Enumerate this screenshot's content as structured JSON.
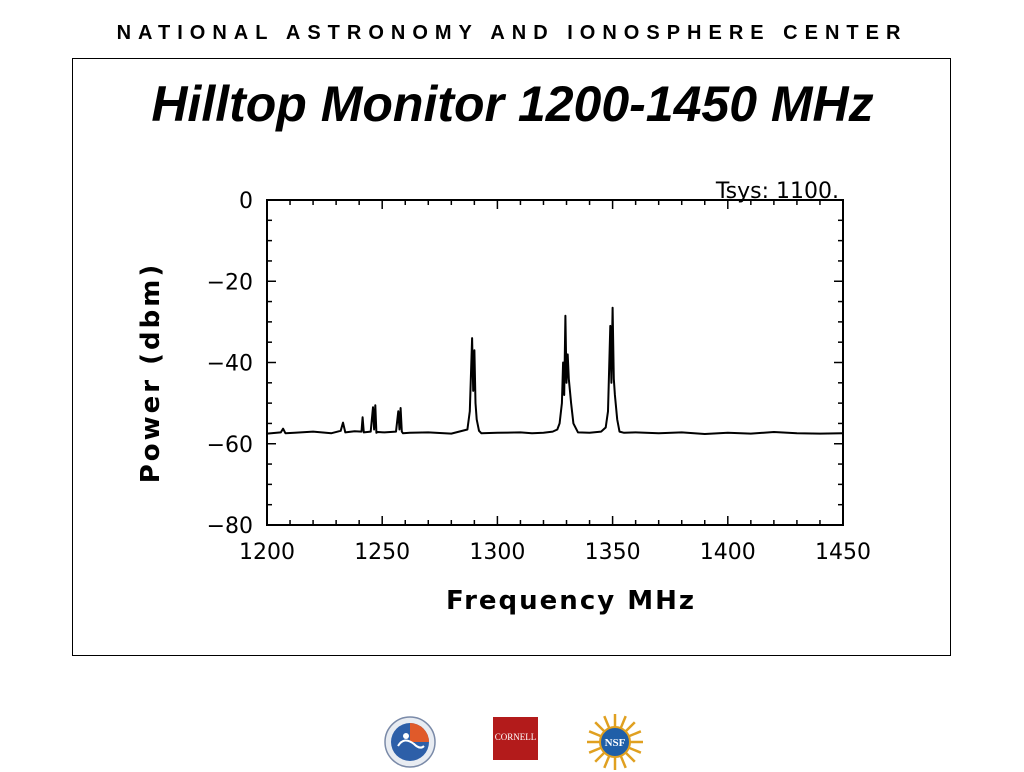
{
  "header": {
    "organization": "NATIONAL ASTRONOMY AND IONOSPHERE CENTER"
  },
  "slide": {
    "title": "Hilltop Monitor 1200-1450 MHz"
  },
  "logos": {
    "naic": {
      "icon": "naic-seal-icon"
    },
    "cornell": {
      "icon": "cornell-logo-icon",
      "text": "CORNELL",
      "color": "#b31b1b"
    },
    "nsf": {
      "icon": "nsf-logo-icon",
      "text": "NSF"
    }
  },
  "chart_data": {
    "type": "line",
    "annotation": "Tsys: 1100.",
    "xlabel": "Frequency  MHz",
    "ylabel": "Power  (dbm)",
    "xlim": [
      1200,
      1450
    ],
    "ylim": [
      -80,
      0
    ],
    "x_ticks": [
      1200,
      1250,
      1300,
      1350,
      1400,
      1450
    ],
    "x_tick_labels": [
      "1200",
      "1250",
      "1300",
      "1350",
      "1400",
      "1450"
    ],
    "y_ticks": [
      0,
      -20,
      -40,
      -60,
      -80
    ],
    "y_tick_labels": [
      "0",
      "−20",
      "−40",
      "−60",
      "−80"
    ],
    "grid": false,
    "line_color": "#000000",
    "series": [
      {
        "x": [
          1200,
          1206,
          1207,
          1208,
          1212,
          1220,
          1228,
          1232,
          1233,
          1234,
          1238,
          1241,
          1241.5,
          1242,
          1245,
          1246,
          1246.5,
          1247,
          1247.5,
          1248,
          1251,
          1256,
          1257,
          1257.5,
          1258,
          1258.5,
          1259,
          1262,
          1270,
          1280,
          1287,
          1288,
          1289,
          1289.5,
          1290,
          1290.5,
          1291,
          1292,
          1293,
          1300,
          1310,
          1315,
          1320,
          1324,
          1326,
          1327,
          1328,
          1328.5,
          1329,
          1329.5,
          1330,
          1330.5,
          1331,
          1332,
          1333,
          1335,
          1340,
          1345,
          1347,
          1348,
          1349,
          1349.5,
          1350,
          1350.5,
          1351,
          1352,
          1353,
          1355,
          1360,
          1370,
          1380,
          1390,
          1400,
          1410,
          1420,
          1430,
          1440,
          1450
        ],
        "y": [
          -57.5,
          -57.2,
          -56.3,
          -57.4,
          -57.3,
          -57.0,
          -57.4,
          -56.8,
          -54.8,
          -57.2,
          -56.9,
          -57.0,
          -53.5,
          -57.2,
          -57.0,
          -51.0,
          -56.5,
          -50.5,
          -57.3,
          -57.1,
          -57.2,
          -57.0,
          -52.0,
          -56.5,
          -51.2,
          -57.0,
          -57.4,
          -57.3,
          -57.2,
          -57.5,
          -56.5,
          -52.0,
          -34.0,
          -47.0,
          -37.0,
          -50.0,
          -54.0,
          -56.8,
          -57.4,
          -57.3,
          -57.2,
          -57.4,
          -57.3,
          -57.0,
          -56.5,
          -55.0,
          -50.0,
          -40.0,
          -48.0,
          -28.5,
          -45.0,
          -38.0,
          -44.0,
          -50.0,
          -55.0,
          -57.2,
          -57.3,
          -57.0,
          -56.0,
          -52.0,
          -31.0,
          -45.0,
          -26.5,
          -44.0,
          -48.0,
          -54.0,
          -57.0,
          -57.3,
          -57.2,
          -57.4,
          -57.2,
          -57.6,
          -57.3,
          -57.5,
          -57.1,
          -57.4,
          -57.5,
          -57.4
        ]
      }
    ]
  }
}
